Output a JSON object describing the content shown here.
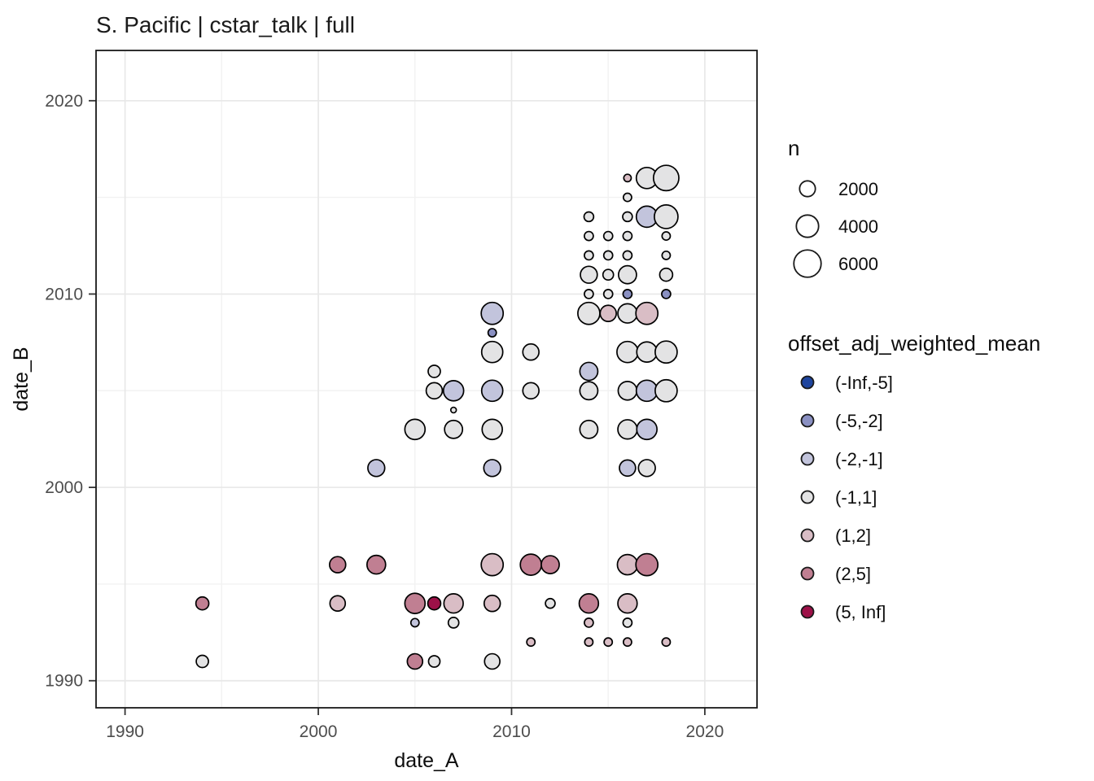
{
  "title": "S. Pacific | cstar_talk | full",
  "chart_data": {
    "type": "scatter",
    "title": "S. Pacific | cstar_talk | full",
    "xlabel": "date_A",
    "ylabel": "date_B",
    "x_ticks": [
      1990,
      2000,
      2010,
      2020
    ],
    "y_ticks": [
      1990,
      2000,
      2010,
      2020
    ],
    "x_minor_ticks": [
      1995,
      2005,
      2015
    ],
    "y_minor_ticks": [
      1995,
      2005,
      2015
    ],
    "xlim": [
      1988.5,
      2022.7
    ],
    "ylim": [
      1988.6,
      2022.6
    ],
    "grid": true,
    "legend_position": "right",
    "size_legend": {
      "title": "n",
      "values": [
        2000,
        4000,
        6000
      ],
      "labels": [
        "2000",
        "4000",
        "6000"
      ]
    },
    "color_legend": {
      "title": "offset_adj_weighted_mean",
      "categories": [
        "(-Inf,-5]",
        "(-5,-2]",
        "(-2,-1]",
        "(-1,1]",
        "(1,2]",
        "(2,5]",
        "(5, Inf]"
      ],
      "colors": {
        "(-Inf,-5]": "#1F459E",
        "(-5,-2]": "#8A90C2",
        "(-2,-1]": "#C2C4DC",
        "(-1,1]": "#E3E3E4",
        "(1,2]": "#D9BDC5",
        "(2,5]": "#C07F92",
        "(5, Inf]": "#9D1148"
      }
    },
    "point_style": {
      "stroke": "#000000",
      "stroke_width": 1.7
    },
    "points": [
      {
        "x": 1994,
        "y": 1994,
        "n": 1350,
        "cat": "(2,5]"
      },
      {
        "x": 1994,
        "y": 1991,
        "n": 1200,
        "cat": "(-1,1]"
      },
      {
        "x": 2001,
        "y": 1996,
        "n": 2100,
        "cat": "(2,5]"
      },
      {
        "x": 2001,
        "y": 1994,
        "n": 1900,
        "cat": "(1,2]"
      },
      {
        "x": 2003,
        "y": 2001,
        "n": 2300,
        "cat": "(-2,-1]"
      },
      {
        "x": 2003,
        "y": 1996,
        "n": 2800,
        "cat": "(2,5]"
      },
      {
        "x": 2005,
        "y": 2003,
        "n": 3300,
        "cat": "(-1,1]"
      },
      {
        "x": 2005,
        "y": 1994,
        "n": 3300,
        "cat": "(2,5]"
      },
      {
        "x": 2005,
        "y": 1993,
        "n": 550,
        "cat": "(-2,-1]"
      },
      {
        "x": 2005,
        "y": 1991,
        "n": 1900,
        "cat": "(2,5]"
      },
      {
        "x": 2006,
        "y": 2006,
        "n": 1200,
        "cat": "(-1,1]"
      },
      {
        "x": 2006,
        "y": 2005,
        "n": 2100,
        "cat": "(-1,1]"
      },
      {
        "x": 2006,
        "y": 1994,
        "n": 1350,
        "cat": "(5, Inf]"
      },
      {
        "x": 2006,
        "y": 1991,
        "n": 1050,
        "cat": "(-1,1]"
      },
      {
        "x": 2007,
        "y": 2005,
        "n": 3300,
        "cat": "(-2,-1]"
      },
      {
        "x": 2007,
        "y": 2004,
        "n": 250,
        "cat": "(-1,1]"
      },
      {
        "x": 2007,
        "y": 2003,
        "n": 2600,
        "cat": "(-1,1]"
      },
      {
        "x": 2007,
        "y": 1994,
        "n": 3000,
        "cat": "(1,2]"
      },
      {
        "x": 2007,
        "y": 1993,
        "n": 900,
        "cat": "(-1,1]"
      },
      {
        "x": 2009,
        "y": 2009,
        "n": 3900,
        "cat": "(-2,-1]"
      },
      {
        "x": 2009,
        "y": 2008,
        "n": 550,
        "cat": "(-5,-2]"
      },
      {
        "x": 2009,
        "y": 2007,
        "n": 3600,
        "cat": "(-1,1]"
      },
      {
        "x": 2009,
        "y": 2005,
        "n": 3600,
        "cat": "(-2,-1]"
      },
      {
        "x": 2009,
        "y": 2003,
        "n": 3300,
        "cat": "(-1,1]"
      },
      {
        "x": 2009,
        "y": 2001,
        "n": 2300,
        "cat": "(-2,-1]"
      },
      {
        "x": 2009,
        "y": 1996,
        "n": 3900,
        "cat": "(1,2]"
      },
      {
        "x": 2009,
        "y": 1994,
        "n": 2100,
        "cat": "(1,2]"
      },
      {
        "x": 2009,
        "y": 1991,
        "n": 1900,
        "cat": "(-1,1]"
      },
      {
        "x": 2011,
        "y": 2007,
        "n": 2100,
        "cat": "(-1,1]"
      },
      {
        "x": 2011,
        "y": 2005,
        "n": 2100,
        "cat": "(-1,1]"
      },
      {
        "x": 2011,
        "y": 1996,
        "n": 3600,
        "cat": "(2,5]"
      },
      {
        "x": 2011,
        "y": 1992,
        "n": 550,
        "cat": "(1,2]"
      },
      {
        "x": 2012,
        "y": 1996,
        "n": 2600,
        "cat": "(2,5]"
      },
      {
        "x": 2012,
        "y": 1994,
        "n": 750,
        "cat": "(-1,1]"
      },
      {
        "x": 2014,
        "y": 2014,
        "n": 750,
        "cat": "(-1,1]"
      },
      {
        "x": 2014,
        "y": 2013,
        "n": 650,
        "cat": "(-1,1]"
      },
      {
        "x": 2014,
        "y": 2012,
        "n": 650,
        "cat": "(-1,1]"
      },
      {
        "x": 2014,
        "y": 2011,
        "n": 2300,
        "cat": "(-1,1]"
      },
      {
        "x": 2014,
        "y": 2010,
        "n": 650,
        "cat": "(-1,1]"
      },
      {
        "x": 2014,
        "y": 2009,
        "n": 3900,
        "cat": "(-1,1]"
      },
      {
        "x": 2014,
        "y": 2006,
        "n": 2600,
        "cat": "(-2,-1]"
      },
      {
        "x": 2014,
        "y": 2005,
        "n": 2600,
        "cat": "(-1,1]"
      },
      {
        "x": 2014,
        "y": 2003,
        "n": 2600,
        "cat": "(-1,1]"
      },
      {
        "x": 2014,
        "y": 1994,
        "n": 3000,
        "cat": "(2,5]"
      },
      {
        "x": 2014,
        "y": 1993,
        "n": 650,
        "cat": "(1,2]"
      },
      {
        "x": 2014,
        "y": 1992,
        "n": 550,
        "cat": "(1,2]"
      },
      {
        "x": 2015,
        "y": 2013,
        "n": 650,
        "cat": "(-1,1]"
      },
      {
        "x": 2015,
        "y": 2012,
        "n": 650,
        "cat": "(-1,1]"
      },
      {
        "x": 2015,
        "y": 2011,
        "n": 900,
        "cat": "(-1,1]"
      },
      {
        "x": 2015,
        "y": 2010,
        "n": 650,
        "cat": "(-1,1]"
      },
      {
        "x": 2015,
        "y": 2009,
        "n": 2100,
        "cat": "(1,2]"
      },
      {
        "x": 2015,
        "y": 1992,
        "n": 550,
        "cat": "(1,2]"
      },
      {
        "x": 2016,
        "y": 2016,
        "n": 450,
        "cat": "(1,2]"
      },
      {
        "x": 2016,
        "y": 2015,
        "n": 550,
        "cat": "(-1,1]"
      },
      {
        "x": 2016,
        "y": 2014,
        "n": 750,
        "cat": "(-1,1]"
      },
      {
        "x": 2016,
        "y": 2013,
        "n": 650,
        "cat": "(-1,1]"
      },
      {
        "x": 2016,
        "y": 2012,
        "n": 650,
        "cat": "(-1,1]"
      },
      {
        "x": 2016,
        "y": 2011,
        "n": 2600,
        "cat": "(-1,1]"
      },
      {
        "x": 2016,
        "y": 2010,
        "n": 650,
        "cat": "(-5,-2]"
      },
      {
        "x": 2016,
        "y": 2009,
        "n": 3000,
        "cat": "(-1,1]"
      },
      {
        "x": 2016,
        "y": 2007,
        "n": 3600,
        "cat": "(-1,1]"
      },
      {
        "x": 2016,
        "y": 2005,
        "n": 2800,
        "cat": "(-1,1]"
      },
      {
        "x": 2016,
        "y": 2003,
        "n": 3000,
        "cat": "(-1,1]"
      },
      {
        "x": 2016,
        "y": 2001,
        "n": 2100,
        "cat": "(-2,-1]"
      },
      {
        "x": 2016,
        "y": 1996,
        "n": 3300,
        "cat": "(1,2]"
      },
      {
        "x": 2016,
        "y": 1994,
        "n": 3000,
        "cat": "(1,2]"
      },
      {
        "x": 2016,
        "y": 1993,
        "n": 650,
        "cat": "(-1,1]"
      },
      {
        "x": 2016,
        "y": 1992,
        "n": 550,
        "cat": "(1,2]"
      },
      {
        "x": 2017,
        "y": 2016,
        "n": 3600,
        "cat": "(-1,1]"
      },
      {
        "x": 2017,
        "y": 2014,
        "n": 3600,
        "cat": "(-2,-1]"
      },
      {
        "x": 2017,
        "y": 2009,
        "n": 3900,
        "cat": "(1,2]"
      },
      {
        "x": 2017,
        "y": 2007,
        "n": 3300,
        "cat": "(-1,1]"
      },
      {
        "x": 2017,
        "y": 2005,
        "n": 3600,
        "cat": "(-2,-1]"
      },
      {
        "x": 2017,
        "y": 2003,
        "n": 3300,
        "cat": "(-2,-1]"
      },
      {
        "x": 2017,
        "y": 2001,
        "n": 2300,
        "cat": "(-1,1]"
      },
      {
        "x": 2017,
        "y": 1996,
        "n": 3900,
        "cat": "(2,5]"
      },
      {
        "x": 2018,
        "y": 2016,
        "n": 5200,
        "cat": "(-1,1]"
      },
      {
        "x": 2018,
        "y": 2014,
        "n": 4500,
        "cat": "(-1,1]"
      },
      {
        "x": 2018,
        "y": 2013,
        "n": 550,
        "cat": "(-1,1]"
      },
      {
        "x": 2018,
        "y": 2012,
        "n": 550,
        "cat": "(-1,1]"
      },
      {
        "x": 2018,
        "y": 2011,
        "n": 1350,
        "cat": "(-1,1]"
      },
      {
        "x": 2018,
        "y": 2010,
        "n": 650,
        "cat": "(-5,-2]"
      },
      {
        "x": 2018,
        "y": 2007,
        "n": 3900,
        "cat": "(-1,1]"
      },
      {
        "x": 2018,
        "y": 2005,
        "n": 3900,
        "cat": "(-1,1]"
      },
      {
        "x": 2018,
        "y": 1992,
        "n": 550,
        "cat": "(1,2]"
      }
    ]
  }
}
